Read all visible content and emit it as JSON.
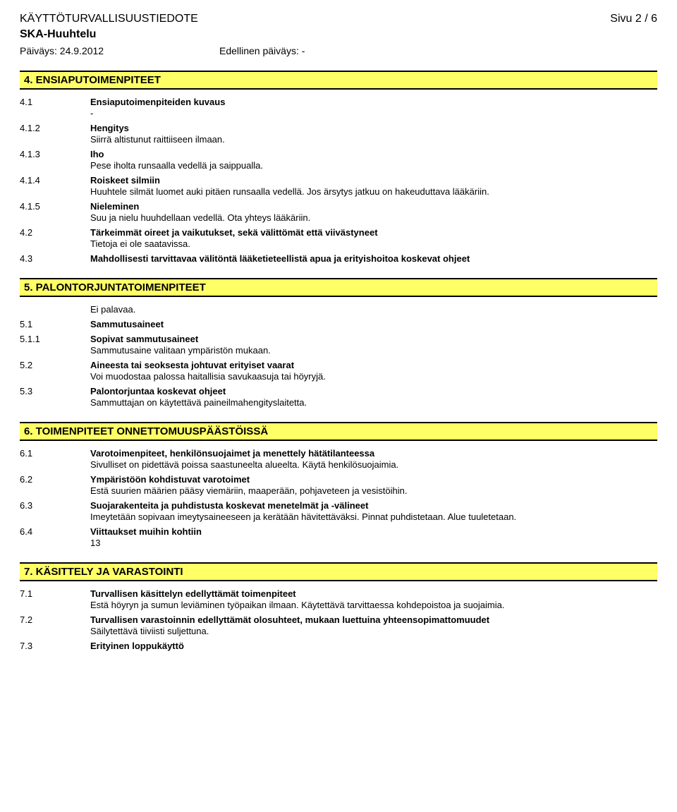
{
  "header": {
    "doc_title": "KÄYTTÖTURVALLISUUSTIEDOTE",
    "page_label": "Sivu 2 / 6",
    "product": "SKA-Huuhtelu",
    "date_label": "Päiväys: 24.9.2012",
    "prev_label": "Edellinen päiväys: -"
  },
  "s4": {
    "bar": "4. ENSIAPUTOIMENPITEET",
    "i1": {
      "num": "4.1",
      "title": "Ensiaputoimenpiteiden kuvaus",
      "text": "-"
    },
    "i2": {
      "num": "4.1.2",
      "title": "Hengitys",
      "text": "Siirrä altistunut raittiiseen ilmaan."
    },
    "i3": {
      "num": "4.1.3",
      "title": "Iho",
      "text": "Pese iholta runsaalla vedellä ja saippualla."
    },
    "i4": {
      "num": "4.1.4",
      "title": "Roiskeet silmiin",
      "text": "Huuhtele silmät luomet auki pitäen runsaalla vedellä. Jos ärsytys jatkuu on hakeuduttava lääkäriin."
    },
    "i5": {
      "num": "4.1.5",
      "title": "Nieleminen",
      "text": "Suu ja nielu huuhdellaan vedellä. Ota yhteys lääkäriin."
    },
    "i6": {
      "num": "4.2",
      "title": "Tärkeimmät oireet ja vaikutukset, sekä välittömät että viivästyneet",
      "text": "Tietoja ei ole saatavissa."
    },
    "i7": {
      "num": "4.3",
      "title": "Mahdollisesti tarvittavaa välitöntä lääketieteellistä apua ja erityishoitoa koskevat ohjeet"
    }
  },
  "s5": {
    "bar": "5. PALONTORJUNTATOIMENPITEET",
    "pre": {
      "text": "Ei palavaa."
    },
    "i1": {
      "num": "5.1",
      "title": "Sammutusaineet"
    },
    "i2": {
      "num": "5.1.1",
      "title": "Sopivat sammutusaineet",
      "text": "Sammutusaine valitaan ympäristön mukaan."
    },
    "i3": {
      "num": "5.2",
      "title": "Aineesta tai seoksesta johtuvat erityiset vaarat",
      "text": "Voi muodostaa palossa haitallisia savukaasuja tai höyryjä."
    },
    "i4": {
      "num": "5.3",
      "title": "Palontorjuntaa koskevat ohjeet",
      "text": "Sammuttajan on käytettävä paineilmahengityslaitetta."
    }
  },
  "s6": {
    "bar": "6. TOIMENPITEET ONNETTOMUUSPÄÄSTÖISSÄ",
    "i1": {
      "num": "6.1",
      "title": "Varotoimenpiteet, henkilönsuojaimet ja menettely hätätilanteessa",
      "text": "Sivulliset on pidettävä poissa saastuneelta alueelta. Käytä henkilösuojaimia."
    },
    "i2": {
      "num": "6.2",
      "title": "Ympäristöön kohdistuvat varotoimet",
      "text": "Estä suurien määrien pääsy viemäriin, maaperään, pohjaveteen ja vesistöihin."
    },
    "i3": {
      "num": "6.3",
      "title": "Suojarakenteita ja puhdistusta koskevat menetelmät ja -välineet",
      "text": "Imeytetään sopivaan imeytysaineeseen ja kerätään hävitettäväksi. Pinnat puhdistetaan. Alue tuuletetaan."
    },
    "i4": {
      "num": "6.4",
      "title": "Viittaukset muihin kohtiin",
      "text": "13"
    }
  },
  "s7": {
    "bar": "7. KÄSITTELY JA VARASTOINTI",
    "i1": {
      "num": "7.1",
      "title": "Turvallisen käsittelyn edellyttämät toimenpiteet",
      "text": "Estä höyryn ja sumun leviäminen työpaikan ilmaan. Käytettävä tarvittaessa kohdepoistoa ja suojaimia."
    },
    "i2": {
      "num": "7.2",
      "title": "Turvallisen varastoinnin edellyttämät olosuhteet, mukaan luettuina yhteensopimattomuudet",
      "text": "Säilytettävä tiiviisti suljettuna."
    },
    "i3": {
      "num": "7.3",
      "title": "Erityinen loppukäyttö"
    }
  }
}
